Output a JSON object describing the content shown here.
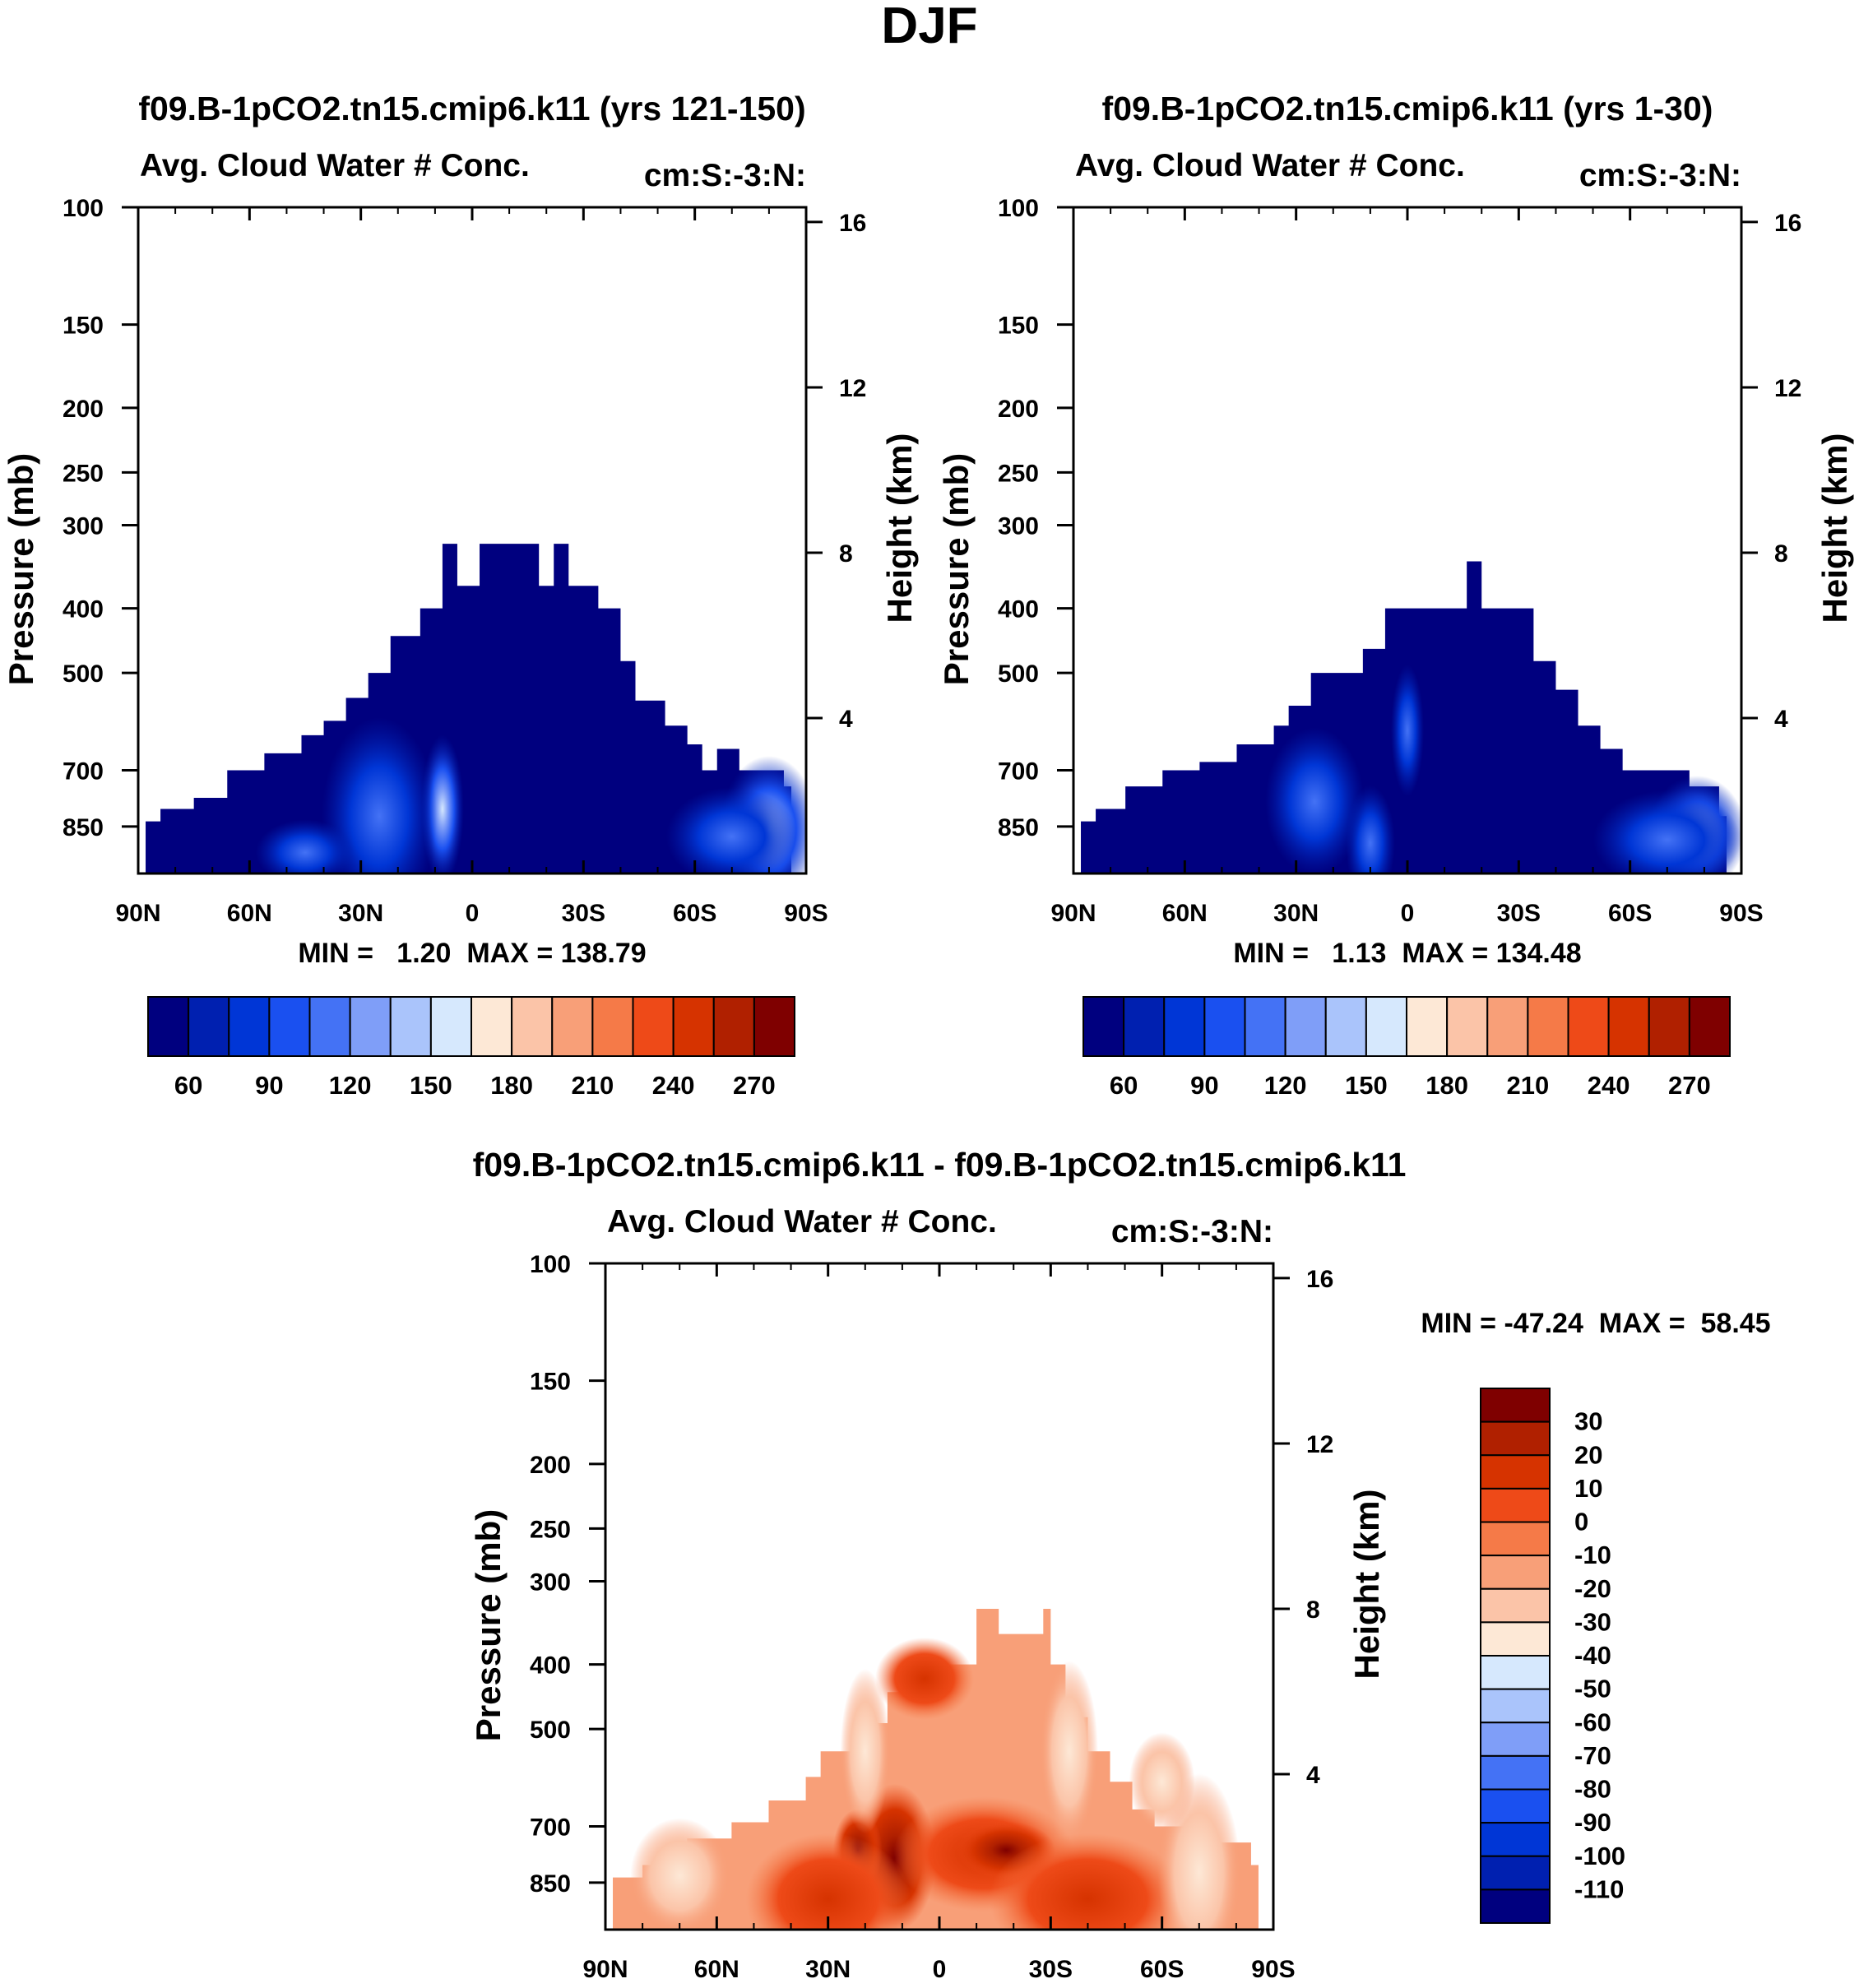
{
  "figure": {
    "season": "DJF",
    "panel_title_unit": "cm:S:-3:N:",
    "variable_title": "Avg. Cloud Water # Conc."
  },
  "colors": {
    "cmap": [
      "#00007f",
      "#0020b0",
      "#0036d6",
      "#1a50f0",
      "#4472f5",
      "#7f9ef8",
      "#aac4fb",
      "#d6e8fd",
      "#fde8d6",
      "#fbc4a8",
      "#f89f78",
      "#f57a48",
      "#ee4a18",
      "#d63300",
      "#b02000",
      "#7f0000"
    ]
  },
  "chart_data": [
    {
      "type": "contour",
      "title": "f09.B-1pCO2.tn15.cmip6.k11 (yrs 121-150)",
      "subtitle_left": "Avg. Cloud Water # Conc.",
      "subtitle_right": "cm:S:-3:N:",
      "ylabel": "Pressure (mb)",
      "ylabel_right": "Height (km)",
      "xticks": [
        "90N",
        "60N",
        "30N",
        "0",
        "30S",
        "60S",
        "90S"
      ],
      "xtick_values": [
        90,
        60,
        30,
        0,
        -30,
        -60,
        -90
      ],
      "yticks": [
        "100",
        "150",
        "200",
        "250",
        "300",
        "400",
        "500",
        "700",
        "850"
      ],
      "ytick_values": [
        100,
        150,
        200,
        250,
        300,
        400,
        500,
        700,
        850
      ],
      "ytick_right": [
        "16",
        "12",
        "8",
        "4"
      ],
      "ytick_right_values": [
        16,
        12,
        8,
        4
      ],
      "ylim": [
        100,
        1000
      ],
      "xlim": [
        90,
        -90
      ],
      "stats": "MIN =   1.20  MAX = 138.79",
      "colorbar_labels": [
        "60",
        "90",
        "120",
        "150",
        "180",
        "210",
        "240",
        "270"
      ],
      "colorbar_levels": [
        45,
        60,
        75,
        90,
        105,
        120,
        135,
        150,
        165,
        180,
        195,
        210,
        225,
        240,
        255,
        270
      ],
      "cloud_top_mb": [
        [
          88,
          835
        ],
        [
          84,
          800
        ],
        [
          75,
          770
        ],
        [
          66,
          700
        ],
        [
          56,
          660
        ],
        [
          46,
          620
        ],
        [
          40,
          590
        ],
        [
          34,
          545
        ],
        [
          28,
          500
        ],
        [
          22,
          440
        ],
        [
          14,
          400
        ],
        [
          8,
          320
        ],
        [
          4,
          370
        ],
        [
          0,
          370
        ],
        [
          -2,
          320
        ],
        [
          -16,
          320
        ],
        [
          -18,
          370
        ],
        [
          -22,
          320
        ],
        [
          -26,
          370
        ],
        [
          -34,
          400
        ],
        [
          -40,
          480
        ],
        [
          -44,
          550
        ],
        [
          -52,
          600
        ],
        [
          -58,
          640
        ],
        [
          -62,
          700
        ],
        [
          -66,
          650
        ],
        [
          -72,
          700
        ],
        [
          -76,
          700
        ],
        [
          -84,
          740
        ],
        [
          -86,
          740
        ]
      ]
    },
    {
      "type": "contour",
      "title": "f09.B-1pCO2.tn15.cmip6.k11 (yrs 1-30)",
      "subtitle_left": "Avg. Cloud Water # Conc.",
      "subtitle_right": "cm:S:-3:N:",
      "ylabel": "Pressure (mb)",
      "ylabel_right": "Height (km)",
      "xticks": [
        "90N",
        "60N",
        "30N",
        "0",
        "30S",
        "60S",
        "90S"
      ],
      "xtick_values": [
        90,
        60,
        30,
        0,
        -30,
        -60,
        -90
      ],
      "yticks": [
        "100",
        "150",
        "200",
        "250",
        "300",
        "400",
        "500",
        "700",
        "850"
      ],
      "ytick_values": [
        100,
        150,
        200,
        250,
        300,
        400,
        500,
        700,
        850
      ],
      "ytick_right": [
        "16",
        "12",
        "8",
        "4"
      ],
      "ytick_right_values": [
        16,
        12,
        8,
        4
      ],
      "ylim": [
        100,
        1000
      ],
      "xlim": [
        90,
        -90
      ],
      "stats": "MIN =   1.13  MAX = 134.48",
      "colorbar_labels": [
        "60",
        "90",
        "120",
        "150",
        "180",
        "210",
        "240",
        "270"
      ],
      "colorbar_levels": [
        45,
        60,
        75,
        90,
        105,
        120,
        135,
        150,
        165,
        180,
        195,
        210,
        225,
        240,
        255,
        270
      ],
      "cloud_top_mb": [
        [
          88,
          835
        ],
        [
          84,
          800
        ],
        [
          76,
          740
        ],
        [
          66,
          700
        ],
        [
          56,
          680
        ],
        [
          46,
          640
        ],
        [
          36,
          600
        ],
        [
          32,
          560
        ],
        [
          26,
          500
        ],
        [
          12,
          460
        ],
        [
          6,
          400
        ],
        [
          -8,
          400
        ],
        [
          -16,
          340
        ],
        [
          -20,
          400
        ],
        [
          -28,
          400
        ],
        [
          -34,
          480
        ],
        [
          -40,
          530
        ],
        [
          -46,
          600
        ],
        [
          -52,
          650
        ],
        [
          -58,
          700
        ],
        [
          -66,
          700
        ],
        [
          -70,
          700
        ],
        [
          -76,
          740
        ],
        [
          -84,
          820
        ],
        [
          -86,
          820
        ]
      ]
    },
    {
      "type": "contour",
      "title": "f09.B-1pCO2.tn15.cmip6.k11 - f09.B-1pCO2.tn15.cmip6.k11",
      "subtitle_left": "Avg. Cloud Water # Conc.",
      "subtitle_right": "cm:S:-3:N:",
      "ylabel": "Pressure (mb)",
      "ylabel_right": "Height (km)",
      "xticks": [
        "90N",
        "60N",
        "30N",
        "0",
        "30S",
        "60S",
        "90S"
      ],
      "xtick_values": [
        90,
        60,
        30,
        0,
        -30,
        -60,
        -90
      ],
      "yticks": [
        "100",
        "150",
        "200",
        "250",
        "300",
        "400",
        "500",
        "700",
        "850"
      ],
      "ytick_values": [
        100,
        150,
        200,
        250,
        300,
        400,
        500,
        700,
        850
      ],
      "ytick_right": [
        "16",
        "12",
        "8",
        "4"
      ],
      "ytick_right_values": [
        16,
        12,
        8,
        4
      ],
      "ylim": [
        100,
        1000
      ],
      "xlim": [
        90,
        -90
      ],
      "stats": "MIN = -47.24  MAX =  58.45",
      "colorbar_labels": [
        "30",
        "20",
        "10",
        "0",
        "-10",
        "-20",
        "-30",
        "-40",
        "-50",
        "-60",
        "-70",
        "-80",
        "-90",
        "-100",
        "-110"
      ],
      "colorbar_levels": [
        30,
        20,
        10,
        0,
        -10,
        -20,
        -30,
        -40,
        -50,
        -60,
        -70,
        -80,
        -90,
        -100,
        -110
      ],
      "cloud_top_mb": [
        [
          88,
          835
        ],
        [
          80,
          800
        ],
        [
          68,
          730
        ],
        [
          56,
          690
        ],
        [
          46,
          640
        ],
        [
          36,
          590
        ],
        [
          32,
          540
        ],
        [
          22,
          490
        ],
        [
          14,
          440
        ],
        [
          10,
          400
        ],
        [
          -4,
          400
        ],
        [
          -10,
          330
        ],
        [
          -16,
          360
        ],
        [
          -22,
          360
        ],
        [
          -28,
          330
        ],
        [
          -30,
          400
        ],
        [
          -34,
          480
        ],
        [
          -40,
          540
        ],
        [
          -46,
          600
        ],
        [
          -52,
          660
        ],
        [
          -58,
          700
        ],
        [
          -66,
          700
        ],
        [
          -72,
          740
        ],
        [
          -84,
          800
        ],
        [
          -86,
          800
        ]
      ]
    }
  ]
}
